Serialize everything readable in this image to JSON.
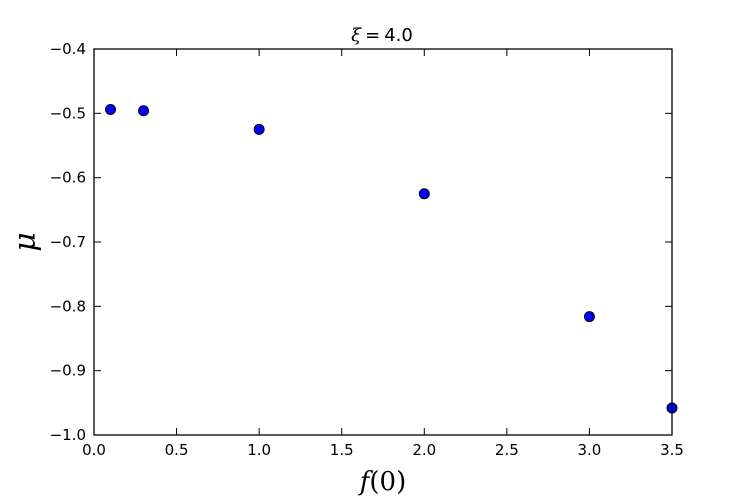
{
  "chart_data": {
    "type": "scatter",
    "title": {
      "symbol": "ξ",
      "operator": "=",
      "value": "4.0"
    },
    "xlabel": {
      "fn": "f",
      "open": "(",
      "arg": "0",
      "close": ")"
    },
    "ylabel": "μ",
    "xlim": [
      0.0,
      3.5
    ],
    "ylim": [
      -1.0,
      -0.4
    ],
    "xticks": [
      0.0,
      0.5,
      1.0,
      1.5,
      2.0,
      2.5,
      3.0,
      3.5
    ],
    "xtick_labels": [
      "0.0",
      "0.5",
      "1.0",
      "1.5",
      "2.0",
      "2.5",
      "3.0",
      "3.5"
    ],
    "yticks": [
      -1.0,
      -0.9,
      -0.8,
      -0.7,
      -0.6,
      -0.5,
      -0.4
    ],
    "ytick_labels": [
      "−1.0",
      "−0.9",
      "−0.8",
      "−0.7",
      "−0.6",
      "−0.5",
      "−0.4"
    ],
    "grid": false,
    "marker_color": "#0000ff",
    "marker_edge_color": "#000000",
    "series": [
      {
        "x": [
          0.1,
          0.3,
          1.0,
          2.0,
          3.0,
          3.5
        ],
        "y": [
          -0.494,
          -0.496,
          -0.525,
          -0.625,
          -0.816,
          -0.958
        ]
      }
    ]
  }
}
